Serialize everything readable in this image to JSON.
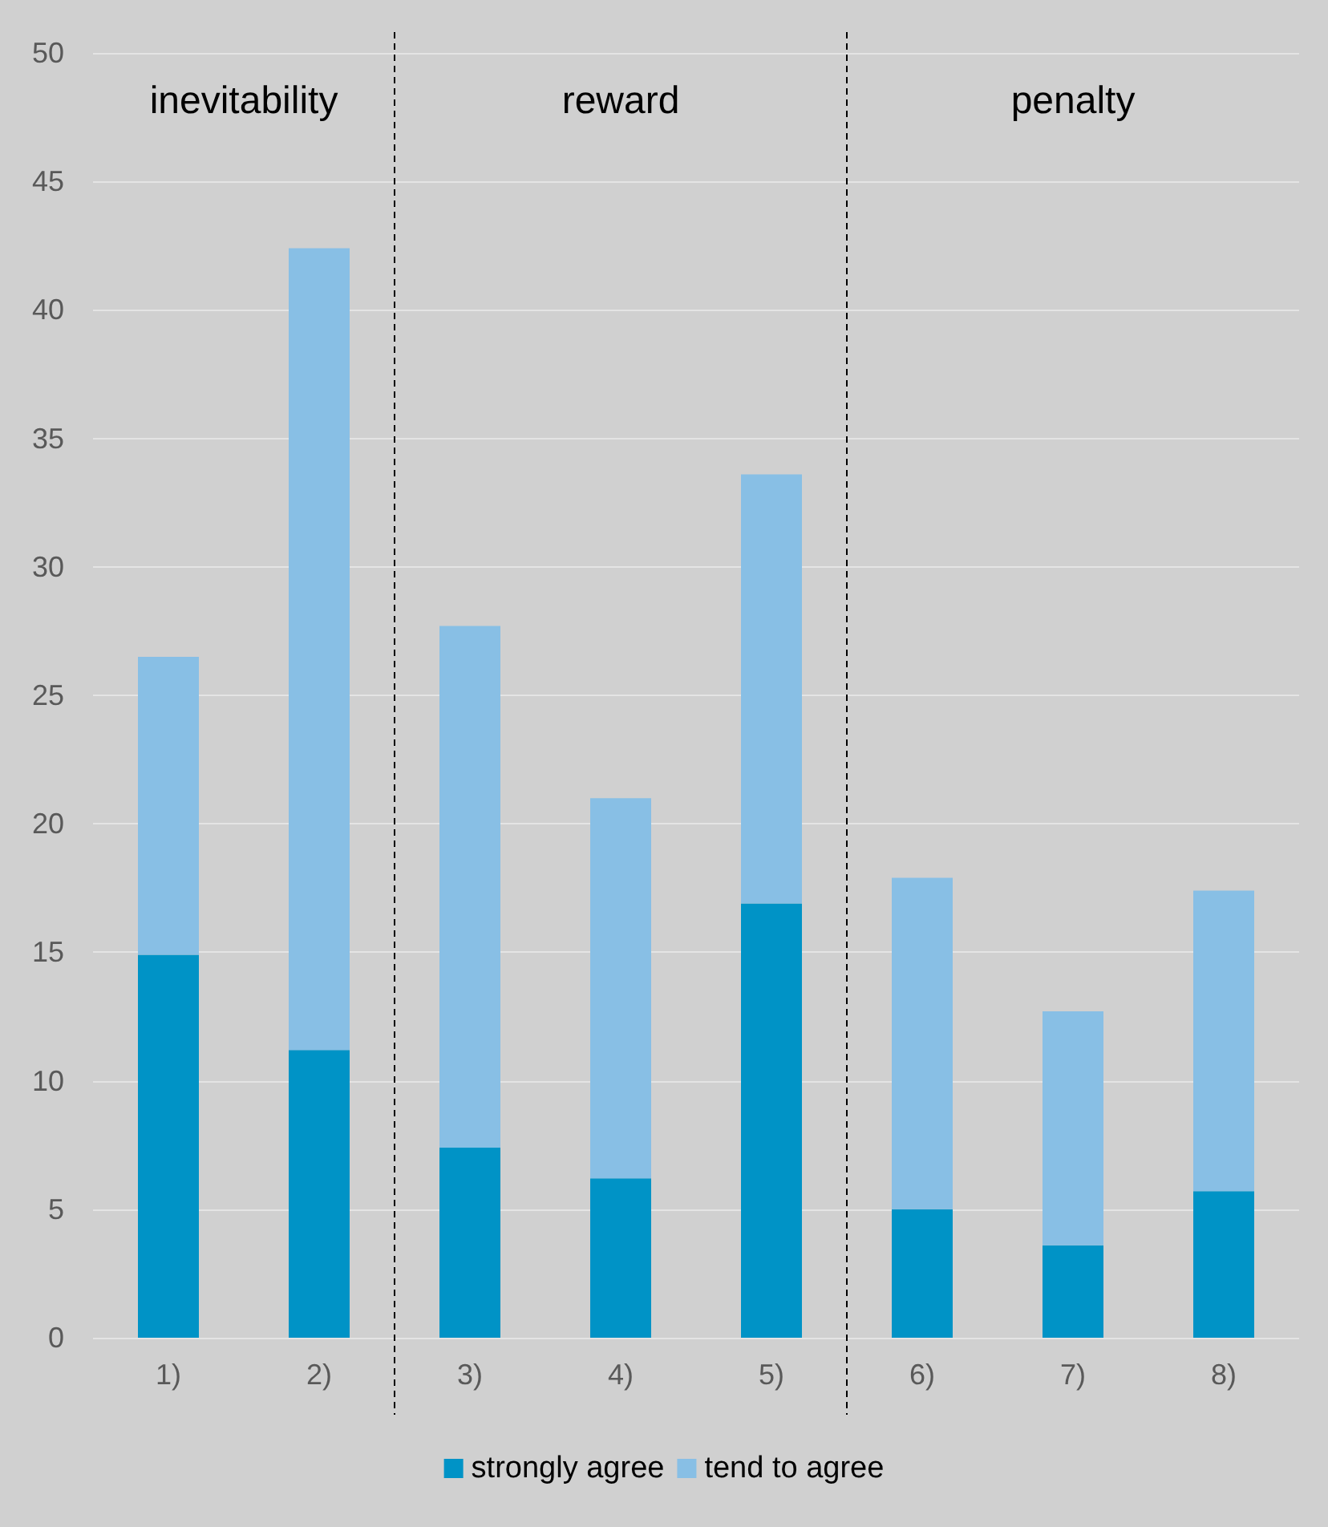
{
  "chart_data": {
    "type": "bar",
    "stacked": true,
    "categories": [
      "1)",
      "2)",
      "3)",
      "4)",
      "5)",
      "6)",
      "7)",
      "8)"
    ],
    "series": [
      {
        "name": "strongly agree",
        "color": "#0093c6",
        "values": [
          14.9,
          11.2,
          7.4,
          6.2,
          16.9,
          5.0,
          3.6,
          5.7
        ]
      },
      {
        "name": "tend to agree",
        "color": "#88bfe5",
        "values": [
          11.6,
          31.2,
          20.3,
          14.8,
          16.7,
          12.9,
          9.1,
          11.7
        ]
      }
    ],
    "ylim": [
      0,
      50
    ],
    "yticks": [
      0,
      5,
      10,
      15,
      20,
      25,
      30,
      35,
      40,
      45,
      50
    ],
    "grid": "y",
    "legend": "bottom",
    "annotations": [
      "inevitability",
      "reward",
      "penalty"
    ]
  }
}
